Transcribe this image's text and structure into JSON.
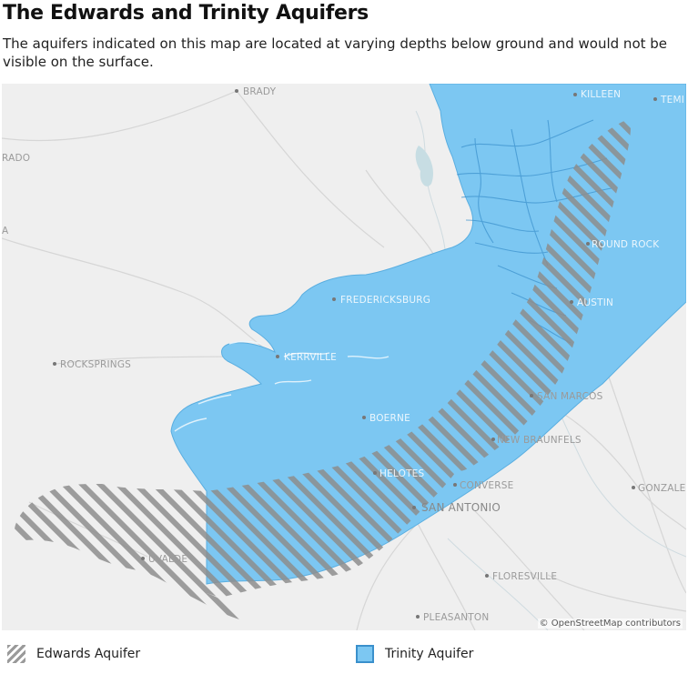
{
  "title": "The Edwards and Trinity Aquifers",
  "subtitle": "The aquifers indicated on this map are located at varying depths below ground and would not be visible on the surface.",
  "attribution": "© OpenStreetMap contributors",
  "colors": {
    "trinity_fill": "#7cc7f2",
    "trinity_border": "#3a90cc",
    "edwards_stripe": "#8d8d8d",
    "map_background": "#efefef"
  },
  "cities": [
    {
      "name": "BRADY"
    },
    {
      "name": "KILLEEN"
    },
    {
      "name": "TEMI"
    },
    {
      "name": "RADO"
    },
    {
      "name": "A"
    },
    {
      "name": "ROUND ROCK"
    },
    {
      "name": "FREDERICKSBURG"
    },
    {
      "name": "AUSTIN"
    },
    {
      "name": "KERRVILLE"
    },
    {
      "name": "ROCKSPRINGS"
    },
    {
      "name": "SAN MARCOS"
    },
    {
      "name": "BOERNE"
    },
    {
      "name": "NEW BRAUNFELS"
    },
    {
      "name": "HELOTES"
    },
    {
      "name": "CONVERSE"
    },
    {
      "name": "GONZALE"
    },
    {
      "name": "SAN ANTONIO"
    },
    {
      "name": "UVALDE"
    },
    {
      "name": "FLORESVILLE"
    },
    {
      "name": "PLEASANTON"
    }
  ],
  "legend": [
    {
      "label": "Edwards Aquifer",
      "swatch": "hatched-gray"
    },
    {
      "label": "Trinity Aquifer",
      "swatch": "solid-blue"
    }
  ]
}
